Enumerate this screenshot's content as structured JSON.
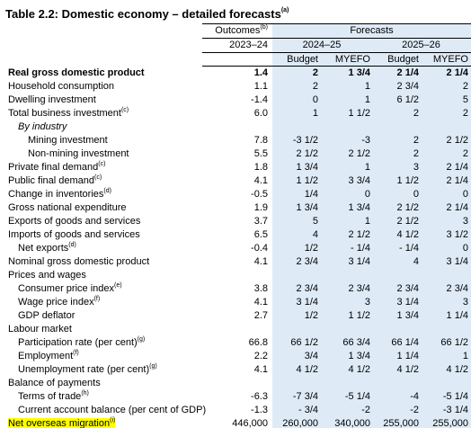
{
  "header": {
    "title": "Table 2.2: Domestic economy – detailed forecasts",
    "title_note": "(a)"
  },
  "columns": {
    "outcomes": "Outcomes",
    "outcomes_note": "(b)",
    "forecasts": "Forecasts",
    "years": [
      "2023–24",
      "2024–25",
      "2025–26"
    ],
    "sub": [
      "Budget",
      "MYEFO",
      "Budget",
      "MYEFO"
    ]
  },
  "table": {
    "rows": [
      {
        "label": "Real gross domestic product",
        "bold": true,
        "indent": 0,
        "values": [
          "1.4",
          "2",
          "1 3/4",
          "2 1/4",
          "2 1/4"
        ]
      },
      {
        "label": "Household consumption",
        "indent": 0,
        "values": [
          "1.1",
          "2",
          "1",
          "2 3/4",
          "2"
        ]
      },
      {
        "label": "Dwelling investment",
        "indent": 0,
        "values": [
          "-1.4",
          "0",
          "1",
          "6 1/2",
          "5"
        ]
      },
      {
        "label": "Total business investment",
        "note": "(c)",
        "indent": 0,
        "values": [
          "6.0",
          "1",
          "1 1/2",
          "2",
          "2"
        ]
      },
      {
        "label": "By industry",
        "italic": true,
        "indent": 1
      },
      {
        "label": "Mining investment",
        "indent": 2,
        "values": [
          "7.8",
          "-3 1/2",
          "-3",
          "2",
          "2 1/2"
        ]
      },
      {
        "label": "Non-mining investment",
        "indent": 2,
        "values": [
          "5.5",
          "2 1/2",
          "2 1/2",
          "2",
          "2"
        ]
      },
      {
        "label": "Private final demand",
        "note": "(c)",
        "indent": 0,
        "values": [
          "1.8",
          "1 3/4",
          "1",
          "3",
          "2 1/4"
        ]
      },
      {
        "label": "Public final demand",
        "note": "(c)",
        "indent": 0,
        "values": [
          "4.1",
          "1 1/2",
          "3 3/4",
          "1 1/2",
          "2 1/4"
        ]
      },
      {
        "label": "Change in inventories",
        "note": "(d)",
        "indent": 0,
        "values": [
          "-0.5",
          "1/4",
          "0",
          "0",
          "0"
        ]
      },
      {
        "label": "Gross national expenditure",
        "indent": 0,
        "values": [
          "1.9",
          "1 3/4",
          "1 3/4",
          "2 1/2",
          "2 1/4"
        ]
      },
      {
        "label": "Exports of goods and services",
        "indent": 0,
        "values": [
          "3.7",
          "5",
          "1",
          "2 1/2",
          "3"
        ]
      },
      {
        "label": "Imports of goods and services",
        "indent": 0,
        "values": [
          "6.5",
          "4",
          "2 1/2",
          "4 1/2",
          "3 1/2"
        ]
      },
      {
        "label": "Net exports",
        "note": "(d)",
        "indent": 1,
        "values": [
          "-0.4",
          "1/2",
          "- 1/4",
          "- 1/4",
          "0"
        ]
      },
      {
        "label": "Nominal gross domestic product",
        "indent": 0,
        "values": [
          "4.1",
          "2 3/4",
          "3 1/4",
          "4",
          "3 1/4"
        ]
      },
      {
        "label": "Prices and wages",
        "indent": 0
      },
      {
        "label": "Consumer price index",
        "note": "(e)",
        "indent": 1,
        "values": [
          "3.8",
          "2 3/4",
          "2 3/4",
          "2 3/4",
          "2 3/4"
        ]
      },
      {
        "label": "Wage price index",
        "note": "(f)",
        "indent": 1,
        "values": [
          "4.1",
          "3 1/4",
          "3",
          "3 1/4",
          "3"
        ]
      },
      {
        "label": "GDP deflator",
        "indent": 1,
        "values": [
          "2.7",
          "1/2",
          "1 1/2",
          "1 3/4",
          "1 1/4"
        ]
      },
      {
        "label": "Labour market",
        "indent": 0
      },
      {
        "label": "Participation rate (per cent)",
        "note": "(g)",
        "indent": 1,
        "values": [
          "66.8",
          "66 1/2",
          "66 3/4",
          "66 1/4",
          "66 1/2"
        ]
      },
      {
        "label": "Employment",
        "note": "(f)",
        "indent": 1,
        "values": [
          "2.2",
          "3/4",
          "1 3/4",
          "1 1/4",
          "1"
        ]
      },
      {
        "label": "Unemployment rate (per cent)",
        "note": "(g)",
        "indent": 1,
        "values": [
          "4.1",
          "4 1/2",
          "4 1/2",
          "4 1/2",
          "4 1/2"
        ]
      },
      {
        "label": "Balance of payments",
        "indent": 0
      },
      {
        "label": "Terms of trade",
        "note": "(h)",
        "indent": 1,
        "values": [
          "-6.3",
          "-7 3/4",
          "-5 1/4",
          "-4",
          "-5 1/4"
        ]
      },
      {
        "label": "Current account balance (per cent of GDP)",
        "indent": 1,
        "values": [
          "-1.3",
          "- 3/4",
          "-2",
          "-2",
          "-3 1/4"
        ]
      },
      {
        "label": "Net overseas migration",
        "note": "(i)",
        "indent": 0,
        "highlight": "#ffff00",
        "values": [
          "446,000",
          "260,000",
          "340,000",
          "255,000",
          "255,000"
        ]
      }
    ]
  }
}
